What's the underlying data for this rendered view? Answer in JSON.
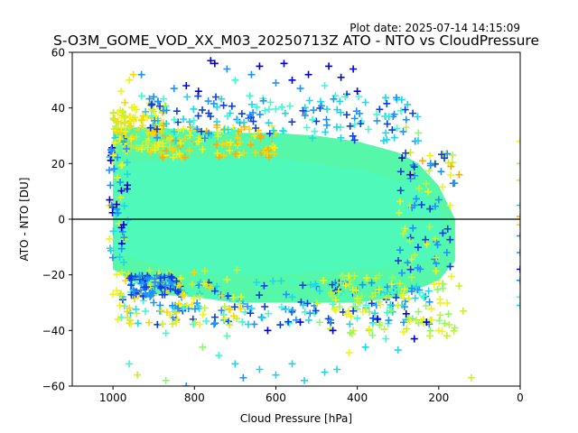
{
  "plot_date": "Plot date: 2025-07-14 14:15:09",
  "chart_data": {
    "type": "scatter",
    "title": "S-O3M_GOME_VOD_XX_M03_20250713Z ATO - NTO vs CloudPressure",
    "xlabel": "Cloud Pressure [hPa]",
    "ylabel": "ATO - NTO [DU]",
    "xlim": [
      1100,
      0
    ],
    "ylim": [
      -60,
      60
    ],
    "x_inverted": true,
    "x_ticks": [
      1000,
      800,
      600,
      400,
      200,
      0
    ],
    "y_ticks": [
      -60,
      -40,
      -20,
      0,
      20,
      40,
      60
    ],
    "x_tick_labels": [
      "1000",
      "800",
      "600",
      "400",
      "200",
      "0"
    ],
    "y_tick_labels": [
      "−60",
      "−40",
      "−20",
      "0",
      "20",
      "40",
      "60"
    ],
    "marker": "plus",
    "grid": false,
    "reference_line_y": 0,
    "point_colors": [
      "#0000dd",
      "#0b3fe0",
      "#1e90ff",
      "#00bfff",
      "#1fd6e6",
      "#3dfccf",
      "#56f7a8",
      "#8ff76a",
      "#c5f035",
      "#f1f21a",
      "#ffd400",
      "#ffaa00"
    ],
    "density_layers": [
      {
        "name": "core",
        "color": "#56f7a8",
        "upper_envelope": [
          [
            1000,
            33
          ],
          [
            900,
            33
          ],
          [
            800,
            32
          ],
          [
            700,
            31
          ],
          [
            600,
            31
          ],
          [
            500,
            30
          ],
          [
            400,
            28
          ],
          [
            300,
            24
          ],
          [
            250,
            20
          ],
          [
            200,
            12
          ],
          [
            160,
            0
          ]
        ],
        "lower_envelope": [
          [
            160,
            -15
          ],
          [
            200,
            -22
          ],
          [
            250,
            -25
          ],
          [
            300,
            -28
          ],
          [
            400,
            -30
          ],
          [
            500,
            -30
          ],
          [
            600,
            -30
          ],
          [
            700,
            -30
          ],
          [
            800,
            -28
          ],
          [
            900,
            -27
          ],
          [
            1000,
            -18
          ]
        ]
      },
      {
        "name": "inner",
        "color": "#4ff9b9",
        "upper_envelope": [
          [
            1000,
            20
          ],
          [
            800,
            22
          ],
          [
            600,
            22
          ],
          [
            400,
            18
          ],
          [
            250,
            12
          ],
          [
            190,
            2
          ]
        ],
        "lower_envelope": [
          [
            190,
            -12
          ],
          [
            250,
            -16
          ],
          [
            400,
            -18
          ],
          [
            600,
            -20
          ],
          [
            800,
            -20
          ],
          [
            1000,
            -12
          ]
        ]
      }
    ],
    "scatter_points": [
      {
        "x": 760,
        "y": 57,
        "c": "#0000dd"
      },
      {
        "x": 750,
        "y": 56,
        "c": "#0000dd"
      },
      {
        "x": 640,
        "y": 55,
        "c": "#0000dd"
      },
      {
        "x": 580,
        "y": 56,
        "c": "#0000dd"
      },
      {
        "x": 470,
        "y": 55,
        "c": "#0000dd"
      },
      {
        "x": 410,
        "y": 54,
        "c": "#0000dd"
      },
      {
        "x": 820,
        "y": 48,
        "c": "#0000dd"
      },
      {
        "x": 790,
        "y": 46,
        "c": "#0000dd"
      },
      {
        "x": 560,
        "y": 50,
        "c": "#0000dd"
      },
      {
        "x": 520,
        "y": 52,
        "c": "#0000dd"
      },
      {
        "x": 440,
        "y": 51,
        "c": "#0000dd"
      },
      {
        "x": 400,
        "y": 46,
        "c": "#0000dd"
      },
      {
        "x": 720,
        "y": 54,
        "c": "#1e90ff"
      },
      {
        "x": 660,
        "y": 52,
        "c": "#1e90ff"
      },
      {
        "x": 600,
        "y": 49,
        "c": "#1e90ff"
      },
      {
        "x": 540,
        "y": 47,
        "c": "#1e90ff"
      },
      {
        "x": 850,
        "y": 47,
        "c": "#1e90ff"
      },
      {
        "x": 900,
        "y": 44,
        "c": "#1e90ff"
      },
      {
        "x": 950,
        "y": 52,
        "c": "#ffd400"
      },
      {
        "x": 960,
        "y": 50,
        "c": "#f1f21a"
      },
      {
        "x": 980,
        "y": 46,
        "c": "#f1f21a"
      },
      {
        "x": 930,
        "y": 52,
        "c": "#1e90ff"
      },
      {
        "x": 700,
        "y": 50,
        "c": "#3dfccf"
      },
      {
        "x": 480,
        "y": 48,
        "c": "#3dfccf"
      },
      {
        "x": 430,
        "y": 44,
        "c": "#56f7a8"
      },
      {
        "x": 380,
        "y": 42,
        "c": "#1fd6e6"
      },
      {
        "x": 330,
        "y": 37,
        "c": "#3dfccf"
      },
      {
        "x": 280,
        "y": 33,
        "c": "#c5f035"
      },
      {
        "x": 250,
        "y": 31,
        "c": "#8ff76a"
      },
      {
        "x": 240,
        "y": 21,
        "c": "#ffaa00"
      },
      {
        "x": 220,
        "y": 20,
        "c": "#1e90ff"
      },
      {
        "x": 170,
        "y": 19,
        "c": "#ffaa00"
      },
      {
        "x": 150,
        "y": 16,
        "c": "#ffaa00"
      },
      {
        "x": 270,
        "y": 16,
        "c": "#0000dd"
      },
      {
        "x": 290,
        "y": 22,
        "c": "#0000dd"
      },
      {
        "x": 200,
        "y": 7,
        "c": "#1e90ff"
      },
      {
        "x": 190,
        "y": -5,
        "c": "#0b3fe0"
      },
      {
        "x": 180,
        "y": -12,
        "c": "#1e90ff"
      },
      {
        "x": 150,
        "y": -24,
        "c": "#c5f035"
      },
      {
        "x": 140,
        "y": -33,
        "c": "#c5f035"
      },
      {
        "x": 120,
        "y": -57,
        "c": "#c5f035"
      },
      {
        "x": 200,
        "y": -40,
        "c": "#f1f21a"
      },
      {
        "x": 230,
        "y": -37,
        "c": "#0000dd"
      },
      {
        "x": 260,
        "y": -43,
        "c": "#0000dd"
      },
      {
        "x": 300,
        "y": -47,
        "c": "#1fd6e6"
      },
      {
        "x": 330,
        "y": -43,
        "c": "#3dfccf"
      },
      {
        "x": 380,
        "y": -46,
        "c": "#1fd6e6"
      },
      {
        "x": 420,
        "y": -48,
        "c": "#f1f21a"
      },
      {
        "x": 450,
        "y": -54,
        "c": "#1fd6e6"
      },
      {
        "x": 480,
        "y": -55,
        "c": "#1fd6e6"
      },
      {
        "x": 530,
        "y": -58,
        "c": "#1fd6e6"
      },
      {
        "x": 560,
        "y": -52,
        "c": "#1fd6e6"
      },
      {
        "x": 600,
        "y": -56,
        "c": "#1fd6e6"
      },
      {
        "x": 640,
        "y": -54,
        "c": "#1fd6e6"
      },
      {
        "x": 680,
        "y": -57,
        "c": "#1e90ff"
      },
      {
        "x": 700,
        "y": -52,
        "c": "#1fd6e6"
      },
      {
        "x": 740,
        "y": -49,
        "c": "#3dfccf"
      },
      {
        "x": 820,
        "y": -60,
        "c": "#1e90ff"
      },
      {
        "x": 870,
        "y": -58,
        "c": "#8ff76a"
      },
      {
        "x": 940,
        "y": -56,
        "c": "#c5f035"
      },
      {
        "x": 960,
        "y": -52,
        "c": "#3dfccf"
      },
      {
        "x": 1000,
        "y": -27,
        "c": "#f1f21a"
      },
      {
        "x": 870,
        "y": -41,
        "c": "#3dfccf"
      },
      {
        "x": 780,
        "y": -46,
        "c": "#8ff76a"
      },
      {
        "x": 720,
        "y": -42,
        "c": "#56f7a8"
      },
      {
        "x": 620,
        "y": -40,
        "c": "#0000dd"
      },
      {
        "x": 540,
        "y": -37,
        "c": "#0000dd"
      },
      {
        "x": 460,
        "y": -40,
        "c": "#0000dd"
      },
      {
        "x": 410,
        "y": -33,
        "c": "#0b3fe0"
      },
      {
        "x": 350,
        "y": -36,
        "c": "#0000dd"
      },
      {
        "x": 280,
        "y": -34,
        "c": "#0000dd"
      },
      {
        "x": 900,
        "y": -30,
        "c": "#1e90ff"
      },
      {
        "x": 840,
        "y": -32,
        "c": "#1e90ff"
      },
      {
        "x": 0,
        "y": 28,
        "c": "#f1f21a"
      },
      {
        "x": 0,
        "y": 20,
        "c": "#8ff76a"
      },
      {
        "x": 0,
        "y": 14,
        "c": "#c5f035"
      },
      {
        "x": 0,
        "y": 5,
        "c": "#1fd6e6"
      },
      {
        "x": 0,
        "y": 1,
        "c": "#ffaa00"
      },
      {
        "x": 0,
        "y": -2,
        "c": "#ffd400"
      },
      {
        "x": 0,
        "y": -6,
        "c": "#1e90ff"
      },
      {
        "x": 0,
        "y": -12,
        "c": "#1e90ff"
      },
      {
        "x": 0,
        "y": -18,
        "c": "#0000dd"
      },
      {
        "x": 0,
        "y": -22,
        "c": "#1e90ff"
      },
      {
        "x": 0,
        "y": -28,
        "c": "#3dfccf"
      },
      {
        "x": 0,
        "y": -31,
        "c": "#1fd6e6"
      }
    ],
    "seed_clusters": [
      {
        "x_range": [
          860,
          1000
        ],
        "y_range": [
          24,
          42
        ],
        "colors": [
          "#f1f21a",
          "#ffd400",
          "#c5f035"
        ],
        "count": 110
      },
      {
        "x_range": [
          600,
          900
        ],
        "y_range": [
          22,
          34
        ],
        "colors": [
          "#ffd400",
          "#f1f21a",
          "#ffaa00"
        ],
        "count": 90
      },
      {
        "x_range": [
          250,
          950
        ],
        "y_range": [
          28,
          45
        ],
        "colors": [
          "#1fd6e6",
          "#1e90ff",
          "#3dfccf",
          "#0b3fe0"
        ],
        "count": 160
      },
      {
        "x_range": [
          220,
          980
        ],
        "y_range": [
          -38,
          -22
        ],
        "colors": [
          "#1e90ff",
          "#1fd6e6",
          "#0b3fe0",
          "#3dfccf"
        ],
        "count": 190
      },
      {
        "x_range": [
          680,
          1000
        ],
        "y_range": [
          -38,
          -18
        ],
        "colors": [
          "#f1f21a",
          "#ffd400",
          "#c5f035"
        ],
        "count": 80
      },
      {
        "x_range": [
          160,
          500
        ],
        "y_range": [
          -42,
          -20
        ],
        "colors": [
          "#c5f035",
          "#8ff76a",
          "#f1f21a"
        ],
        "count": 100
      },
      {
        "x_range": [
          160,
          300
        ],
        "y_range": [
          -20,
          25
        ],
        "colors": [
          "#c5f035",
          "#f1f21a",
          "#0b3fe0",
          "#1e90ff"
        ],
        "count": 70
      },
      {
        "x_range": [
          960,
          1010
        ],
        "y_range": [
          -20,
          30
        ],
        "colors": [
          "#1e90ff",
          "#0000dd",
          "#1fd6e6",
          "#f1f21a"
        ],
        "count": 60
      },
      {
        "x_range": [
          840,
          960
        ],
        "y_range": [
          -28,
          -20
        ],
        "colors": [
          "#1e90ff",
          "#0b3fe0"
        ],
        "count": 60
      }
    ]
  }
}
